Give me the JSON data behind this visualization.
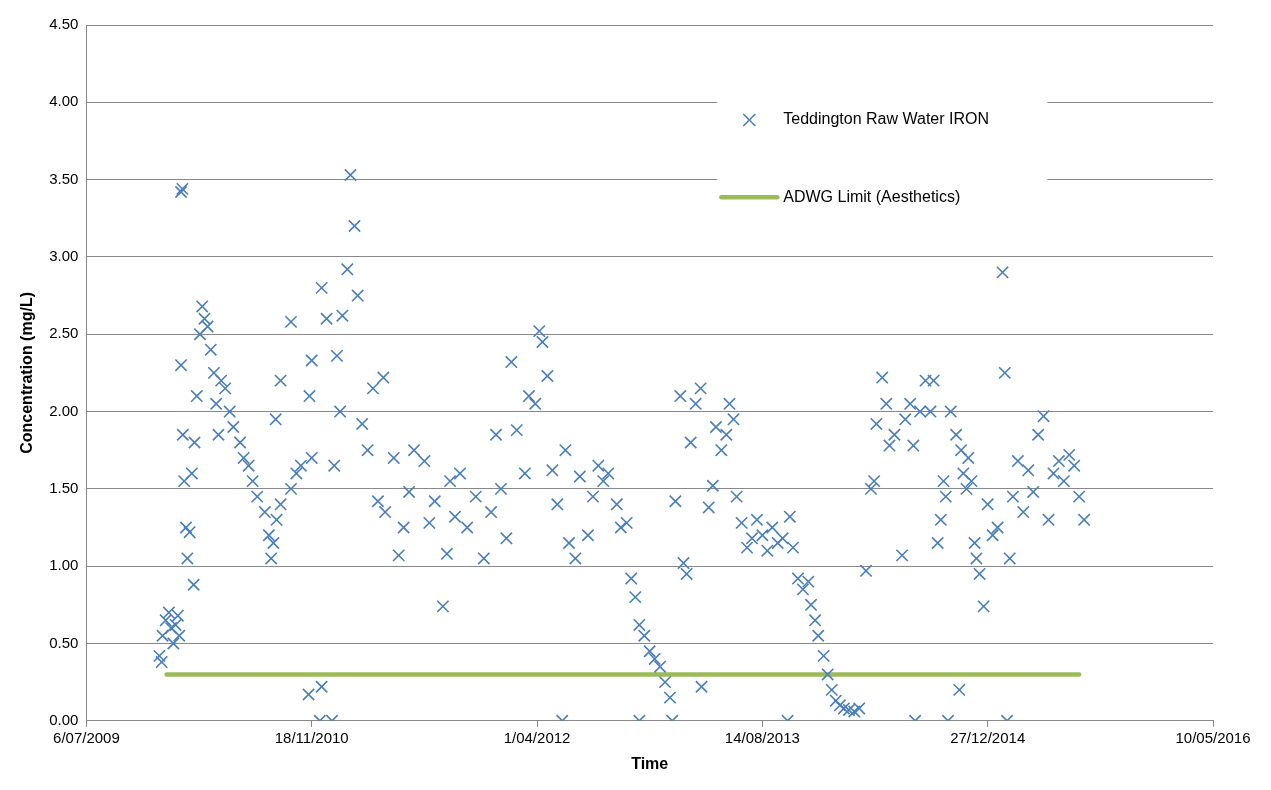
{
  "chart_data": {
    "type": "scatter",
    "xlabel": "Time",
    "ylabel": "Concentration (mg/L)",
    "xlim": [
      "2009-07-06",
      "2016-05-10"
    ],
    "xticks": [
      {
        "value": "2009-07-06",
        "label": "6/07/2009"
      },
      {
        "value": "2010-11-18",
        "label": "18/11/2010"
      },
      {
        "value": "2012-04-01",
        "label": "1/04/2012"
      },
      {
        "value": "2013-08-14",
        "label": "14/08/2013"
      },
      {
        "value": "2014-12-27",
        "label": "27/12/2014"
      },
      {
        "value": "2016-05-10",
        "label": "10/05/2016"
      }
    ],
    "ylim": [
      0,
      4.5
    ],
    "yticks": [
      {
        "value": 0,
        "label": "0.00"
      },
      {
        "value": 0.5,
        "label": "0.50"
      },
      {
        "value": 1,
        "label": "1.00"
      },
      {
        "value": 1.5,
        "label": "1.50"
      },
      {
        "value": 2,
        "label": "2.00"
      },
      {
        "value": 2.5,
        "label": "2.50"
      },
      {
        "value": 3,
        "label": "3.00"
      },
      {
        "value": 3.5,
        "label": "3.50"
      },
      {
        "value": 4,
        "label": "4.00"
      },
      {
        "value": 4.5,
        "label": "4.50"
      }
    ],
    "grid": "y",
    "legend": "top right",
    "series": [
      {
        "name": "Teddington Raw Water IRON",
        "marker": "cross",
        "color": "#4a7ebb",
        "x": [
          "2009-12-15",
          "2009-12-20",
          "2009-12-22",
          "2009-12-29",
          "2010-01-05",
          "2010-01-10",
          "2010-01-15",
          "2010-01-20",
          "2010-01-25",
          "2010-01-28",
          "2010-02-01",
          "2010-02-04",
          "2010-02-01",
          "2010-02-05",
          "2010-02-08",
          "2010-02-12",
          "2010-02-15",
          "2010-02-20",
          "2010-02-25",
          "2010-03-01",
          "2010-03-03",
          "2010-03-08",
          "2010-03-15",
          "2010-03-20",
          "2010-03-25",
          "2010-04-01",
          "2010-04-08",
          "2010-04-15",
          "2010-04-20",
          "2010-04-25",
          "2010-05-01",
          "2010-05-10",
          "2010-05-20",
          "2010-05-28",
          "2010-06-12",
          "2010-06-20",
          "2010-07-01",
          "2010-07-10",
          "2010-07-20",
          "2010-08-06",
          "2010-08-15",
          "2010-08-20",
          "2010-08-25",
          "2010-09-01",
          "2010-09-10",
          "2010-10-03",
          "2010-10-15",
          "2010-10-25",
          "2010-11-18",
          "2010-09-10",
          "2010-10-03",
          "2010-08-30",
          "2010-11-13",
          "2010-11-18",
          "2010-12-10",
          "2010-12-21",
          "2011-01-13",
          "2011-01-25",
          "2011-02-05",
          "2011-02-12",
          "2011-02-21",
          "2011-02-28",
          "2011-01-20",
          "2011-01-07",
          "2010-11-11",
          "2010-12-10",
          "2010-12-06",
          "2011-01-02",
          "2011-03-10",
          "2011-03-22",
          "2011-04-03",
          "2011-04-26",
          "2011-04-14",
          "2011-04-30",
          "2011-05-19",
          "2011-05-30",
          "2011-06-10",
          "2011-06-22",
          "2011-07-03",
          "2011-07-26",
          "2011-08-06",
          "2011-08-18",
          "2011-09-05",
          "2011-09-14",
          "2011-09-21",
          "2011-10-02",
          "2011-10-13",
          "2011-10-29",
          "2011-11-17",
          "2011-12-05",
          "2011-12-21",
          "2012-01-01",
          "2012-01-12",
          "2012-01-24",
          "2012-02-04",
          "2012-02-16",
          "2012-03-05",
          "2012-03-14",
          "2012-03-28",
          "2012-04-06",
          "2012-04-13",
          "2012-04-24",
          "2012-05-05",
          "2012-05-16",
          "2012-05-27",
          "2012-06-03",
          "2012-06-11",
          "2012-06-25",
          "2012-07-05",
          "2012-07-23",
          "2012-08-03",
          "2012-08-15",
          "2012-08-26",
          "2012-09-06",
          "2012-09-25",
          "2012-10-04",
          "2012-10-17",
          "2012-10-27",
          "2012-11-05",
          "2012-11-14",
          "2012-11-14",
          "2012-11-25",
          "2012-12-07",
          "2012-12-18",
          "2012-12-30",
          "2013-01-10",
          "2013-01-21",
          "2013-01-26",
          "2013-02-02",
          "2013-02-13",
          "2013-02-20",
          "2013-02-27",
          "2013-03-08",
          "2013-03-19",
          "2013-03-30",
          "2013-04-01",
          "2013-04-17",
          "2013-04-26",
          "2013-05-03",
          "2013-05-15",
          "2013-05-26",
          "2013-06-02",
          "2013-06-11",
          "2013-06-18",
          "2013-06-29",
          "2013-07-11",
          "2013-07-22",
          "2013-08-02",
          "2013-08-14",
          "2013-08-25",
          "2013-09-05",
          "2013-09-17",
          "2013-09-28",
          "2013-10-09",
          "2013-10-14",
          "2013-10-21",
          "2013-11-01",
          "2013-11-12",
          "2013-11-24",
          "2013-11-30",
          "2013-12-09",
          "2013-12-16",
          "2013-12-28",
          "2014-01-06",
          "2014-01-15",
          "2014-01-24",
          "2014-02-02",
          "2014-02-11",
          "2014-02-22",
          "2014-03-06",
          "2014-03-17",
          "2014-04-01",
          "2014-04-12",
          "2014-04-19",
          "2014-04-24",
          "2014-05-07",
          "2014-05-16",
          "2014-05-23",
          "2014-06-03",
          "2014-06-20",
          "2014-06-27",
          "2014-07-08",
          "2014-07-15",
          "2014-07-19",
          "2014-07-30",
          "2014-08-11",
          "2014-08-22",
          "2014-08-29",
          "2014-09-07",
          "2014-09-14",
          "2014-09-20",
          "2014-09-25",
          "2014-09-30",
          "2014-10-06",
          "2014-10-18",
          "2014-10-25",
          "2014-10-29",
          "2014-11-03",
          "2014-11-10",
          "2014-11-14",
          "2014-11-21",
          "2014-11-28",
          "2014-12-02",
          "2014-12-09",
          "2014-12-18",
          "2014-12-27",
          "2015-01-07",
          "2015-01-18",
          "2015-01-29",
          "2015-02-03",
          "2015-02-08",
          "2015-02-14",
          "2015-02-21",
          "2015-03-04",
          "2015-03-16",
          "2015-03-27",
          "2015-04-07",
          "2015-04-18",
          "2015-04-30",
          "2015-05-11",
          "2015-05-22",
          "2015-06-03",
          "2015-06-14",
          "2015-06-26",
          "2015-07-07",
          "2015-07-18",
          "2015-07-29"
        ],
        "values": [
          0.42,
          0.38,
          0.55,
          0.65,
          0.7,
          0.6,
          0.5,
          0.62,
          0.68,
          0.55,
          3.42,
          3.44,
          2.3,
          1.85,
          1.55,
          1.25,
          1.05,
          1.22,
          1.6,
          0.88,
          1.8,
          2.1,
          2.5,
          2.68,
          2.6,
          2.55,
          2.4,
          2.25,
          2.05,
          1.85,
          2.2,
          2.15,
          2.0,
          1.9,
          1.8,
          1.7,
          1.65,
          1.55,
          1.45,
          1.35,
          1.2,
          1.05,
          1.15,
          1.3,
          1.4,
          1.5,
          1.6,
          1.65,
          1.7,
          2.2,
          2.58,
          1.95,
          2.1,
          2.33,
          2.8,
          2.6,
          2.36,
          2.62,
          2.92,
          3.53,
          3.2,
          2.75,
          2.0,
          1.65,
          0.17,
          0.22,
          0.0,
          0.0,
          1.92,
          1.75,
          2.15,
          2.22,
          1.42,
          1.35,
          1.7,
          1.07,
          1.25,
          1.48,
          1.75,
          1.68,
          1.28,
          1.42,
          0.74,
          1.08,
          1.55,
          1.32,
          1.6,
          1.25,
          1.45,
          1.05,
          1.35,
          1.85,
          1.5,
          1.18,
          2.32,
          1.88,
          1.6,
          2.1,
          2.05,
          2.52,
          2.45,
          2.23,
          1.62,
          1.4,
          0.0,
          1.75,
          1.15,
          1.05,
          1.58,
          1.2,
          1.45,
          1.65,
          1.55,
          1.6,
          1.4,
          1.25,
          1.28,
          0.92,
          0.8,
          0.62,
          0.0,
          0.55,
          0.45,
          0.4,
          0.35,
          0.25,
          0.15,
          0.0,
          1.42,
          2.1,
          1.02,
          0.95,
          1.8,
          2.05,
          2.15,
          0.22,
          1.38,
          1.52,
          1.9,
          1.75,
          1.85,
          2.05,
          1.95,
          1.45,
          1.28,
          1.12,
          1.18,
          1.3,
          1.2,
          1.1,
          1.25,
          1.15,
          1.18,
          0.0,
          1.32,
          1.12,
          0.92,
          0.85,
          0.9,
          0.75,
          0.65,
          0.55,
          0.42,
          0.3,
          0.2,
          0.13,
          0.1,
          0.08,
          0.07,
          0.06,
          0.08,
          0.97,
          1.5,
          1.55,
          1.92,
          2.22,
          2.05,
          1.78,
          1.85,
          1.07,
          1.95,
          2.05,
          1.78,
          0.0,
          2.0,
          2.2,
          2.0,
          2.2,
          1.15,
          1.3,
          1.55,
          1.45,
          0.0,
          2.0,
          1.85,
          0.2,
          1.75,
          1.6,
          1.5,
          1.7,
          1.55,
          1.15,
          1.05,
          0.95,
          0.74,
          1.4,
          1.2,
          1.25,
          2.9,
          2.25,
          0.0,
          1.05,
          1.45,
          1.68,
          1.35,
          1.62,
          1.48,
          1.85,
          1.97,
          1.3,
          1.6,
          1.68,
          1.55,
          1.72,
          1.65,
          1.45,
          1.3
        ]
      },
      {
        "name": "ADWG Limit (Aesthetics)",
        "type": "line",
        "marker": "none",
        "color": "#9bbb59",
        "x": [
          "2009-12-31",
          "2015-07-18"
        ],
        "values": [
          0.3,
          0.3
        ]
      }
    ]
  }
}
